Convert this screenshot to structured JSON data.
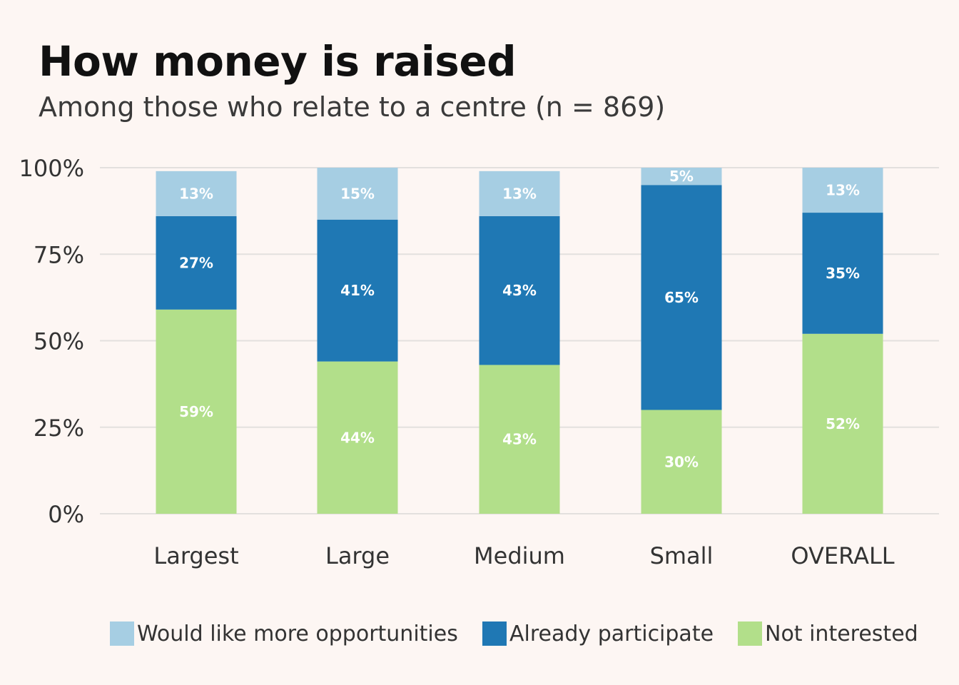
{
  "chart_data": {
    "type": "bar",
    "stacked": true,
    "title": "How money is raised",
    "subtitle": "Among those who relate to a centre (n = 869)",
    "categories": [
      "Largest",
      "Large",
      "Medium",
      "Small",
      "OVERALL"
    ],
    "series": [
      {
        "name": "Not interested",
        "color": "#b2df8a",
        "values": [
          59,
          44,
          43,
          30,
          52
        ],
        "labels": [
          "59%",
          "44%",
          "43%",
          "30%",
          "52%"
        ]
      },
      {
        "name": "Already participate",
        "color": "#1f78b4",
        "values": [
          27,
          41,
          43,
          65,
          35
        ],
        "labels": [
          "27%",
          "41%",
          "43%",
          "65%",
          "35%"
        ]
      },
      {
        "name": "Would like more opportunities",
        "color": "#a6cee3",
        "values": [
          13,
          15,
          13,
          5,
          13
        ],
        "labels": [
          "13%",
          "15%",
          "13%",
          "5%",
          "13%"
        ]
      }
    ],
    "y_ticks": [
      0,
      25,
      50,
      75,
      100
    ],
    "y_tick_labels": [
      "0%",
      "25%",
      "50%",
      "75%",
      "100%"
    ],
    "ylim": [
      0,
      100
    ],
    "grid": "horizontal",
    "legend_position": "bottom",
    "legend_order": [
      "Would like more opportunities",
      "Already participate",
      "Not interested"
    ]
  }
}
